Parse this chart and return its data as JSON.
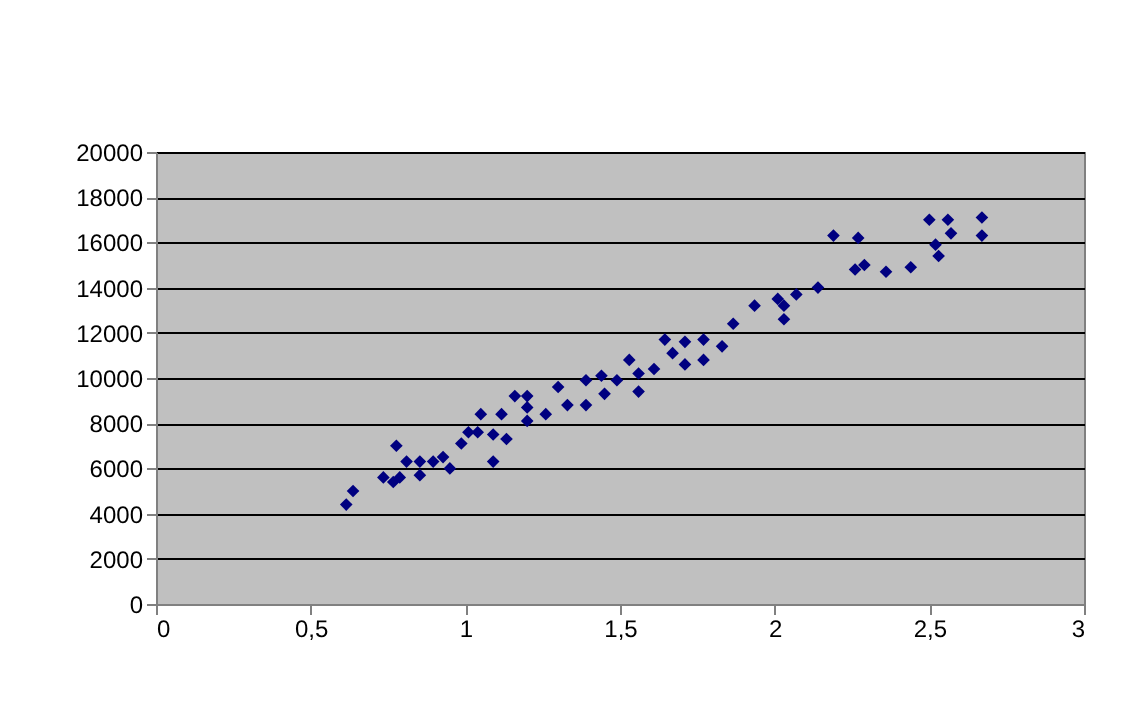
{
  "chart_data": {
    "type": "scatter",
    "marker": "diamond",
    "grid": "y",
    "xlim": [
      0,
      3
    ],
    "xticks": [
      0,
      {
        "value": 0.5,
        "label": "0,5"
      },
      1,
      {
        "value": 1.5,
        "label": "1,5"
      },
      2,
      {
        "value": 2.5,
        "label": "2,5"
      },
      3
    ],
    "ylim": [
      0,
      20000
    ],
    "yticks": [
      0,
      2000,
      4000,
      6000,
      8000,
      10000,
      12000,
      14000,
      16000,
      18000,
      20000
    ],
    "series": [
      {
        "color": "#000080",
        "x": [
          0.615,
          0.637,
          0.735,
          0.767,
          0.788,
          0.777,
          0.81,
          0.853,
          0.853,
          0.896,
          0.928,
          0.95,
          0.987,
          1.01,
          1.04,
          1.05,
          1.09,
          1.09,
          1.117,
          1.133,
          1.16,
          1.2,
          1.2,
          1.2,
          1.26,
          1.3,
          1.33,
          1.39,
          1.39,
          1.44,
          1.45,
          1.49,
          1.53,
          1.56,
          1.56,
          1.61,
          1.645,
          1.67,
          1.71,
          1.71,
          1.77,
          1.77,
          1.83,
          1.866,
          1.935,
          2.01,
          2.03,
          2.03,
          2.07,
          2.14,
          2.19,
          2.27,
          2.26,
          2.29,
          2.36,
          2.44,
          2.5,
          2.52,
          2.53,
          2.56,
          2.57,
          2.67,
          2.67
        ],
        "values": [
          4400,
          5000,
          5600,
          5400,
          5600,
          7000,
          6300,
          6300,
          5700,
          6300,
          6500,
          6000,
          7100,
          7600,
          7600,
          8400,
          7500,
          6300,
          8400,
          7300,
          9200,
          9200,
          8700,
          8100,
          8400,
          9600,
          8800,
          9900,
          8800,
          10100,
          9300,
          9900,
          10800,
          10200,
          9400,
          10400,
          11700,
          11100,
          11600,
          10600,
          11700,
          10800,
          11400,
          12400,
          13200,
          13500,
          13200,
          12600,
          13700,
          14000,
          16300,
          16200,
          14800,
          15000,
          14700,
          14900,
          17000,
          15900,
          15400,
          17000,
          16400,
          17100,
          16300
        ]
      }
    ]
  }
}
